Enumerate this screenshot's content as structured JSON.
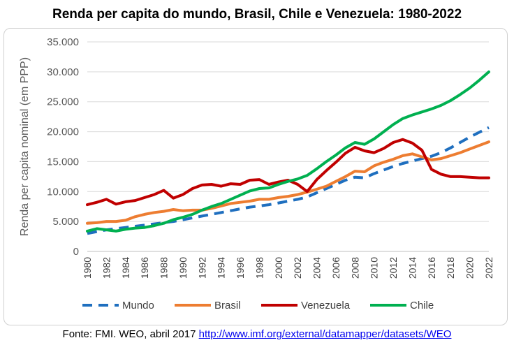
{
  "chart_data": {
    "type": "line",
    "title": "Renda per capita do mundo, Brasil, Chile e Venezuela: 1980-2022",
    "ylabel": "Renda per capita nominal (em PPP)",
    "xlabel": "",
    "ylim": [
      0,
      35000
    ],
    "ytick_labels": [
      "0",
      "5.000",
      "10.000",
      "15.000",
      "20.000",
      "25.000",
      "30.000",
      "35.000"
    ],
    "xtick_labels": [
      "1980",
      "1982",
      "1984",
      "1986",
      "1988",
      "1990",
      "1992",
      "1994",
      "1996",
      "1998",
      "2000",
      "2002",
      "2004",
      "2006",
      "2008",
      "2010",
      "2012",
      "2014",
      "2016",
      "2018",
      "2020",
      "2022"
    ],
    "x": [
      1980,
      1981,
      1982,
      1983,
      1984,
      1985,
      1986,
      1987,
      1988,
      1989,
      1990,
      1991,
      1992,
      1993,
      1994,
      1995,
      1996,
      1997,
      1998,
      1999,
      2000,
      2001,
      2002,
      2003,
      2004,
      2005,
      2006,
      2007,
      2008,
      2009,
      2010,
      2011,
      2012,
      2013,
      2014,
      2015,
      2016,
      2017,
      2018,
      2019,
      2020,
      2021,
      2022
    ],
    "grid": true,
    "legend_position": "bottom",
    "series": [
      {
        "name": "Mundo",
        "color": "#1f6fbf",
        "dashed": true,
        "values": [
          3000,
          3300,
          3600,
          3800,
          4000,
          4200,
          4400,
          4600,
          4800,
          5000,
          5300,
          5600,
          5900,
          6200,
          6500,
          6800,
          7100,
          7400,
          7600,
          7800,
          8100,
          8400,
          8700,
          9100,
          9800,
          10500,
          11200,
          11900,
          12400,
          12300,
          13000,
          13600,
          14200,
          14700,
          15100,
          15500,
          15900,
          16500,
          17300,
          18200,
          19100,
          19900,
          20700
        ]
      },
      {
        "name": "Brasil",
        "color": "#ed7d31",
        "dashed": false,
        "values": [
          4700,
          4800,
          5000,
          5000,
          5200,
          5800,
          6200,
          6500,
          6700,
          7000,
          6800,
          6900,
          6900,
          7200,
          7600,
          8000,
          8200,
          8400,
          8700,
          8700,
          9000,
          9200,
          9500,
          9900,
          10400,
          10900,
          11700,
          12500,
          13400,
          13300,
          14300,
          14900,
          15400,
          16000,
          16300,
          15800,
          15300,
          15500,
          16000,
          16500,
          17100,
          17700,
          18300
        ]
      },
      {
        "name": "Venezuela",
        "color": "#c00000",
        "dashed": false,
        "values": [
          7800,
          8200,
          8700,
          7900,
          8300,
          8500,
          9000,
          9500,
          10200,
          8900,
          9500,
          10500,
          11100,
          11200,
          10900,
          11300,
          11200,
          11900,
          12000,
          11200,
          11600,
          11900,
          11200,
          10000,
          12000,
          13500,
          14900,
          16400,
          17400,
          16800,
          16500,
          17200,
          18200,
          18700,
          18100,
          16900,
          13700,
          12900,
          12500,
          12500,
          12400,
          12300,
          12300
        ]
      },
      {
        "name": "Chile",
        "color": "#00b050",
        "dashed": false,
        "values": [
          3400,
          3800,
          3600,
          3400,
          3700,
          3900,
          4000,
          4300,
          4700,
          5300,
          5700,
          6200,
          6900,
          7500,
          8000,
          8700,
          9400,
          10100,
          10500,
          10600,
          11200,
          11700,
          12100,
          12700,
          13800,
          15000,
          16100,
          17300,
          18200,
          17900,
          18800,
          20000,
          21200,
          22200,
          22800,
          23300,
          23800,
          24400,
          25200,
          26200,
          27300,
          28600,
          30000
        ]
      }
    ]
  },
  "source": {
    "text": "Fonte: FMI. WEO, abril 2017 ",
    "link": "http://www.imf.org/external/datamapper/datasets/WEO"
  }
}
